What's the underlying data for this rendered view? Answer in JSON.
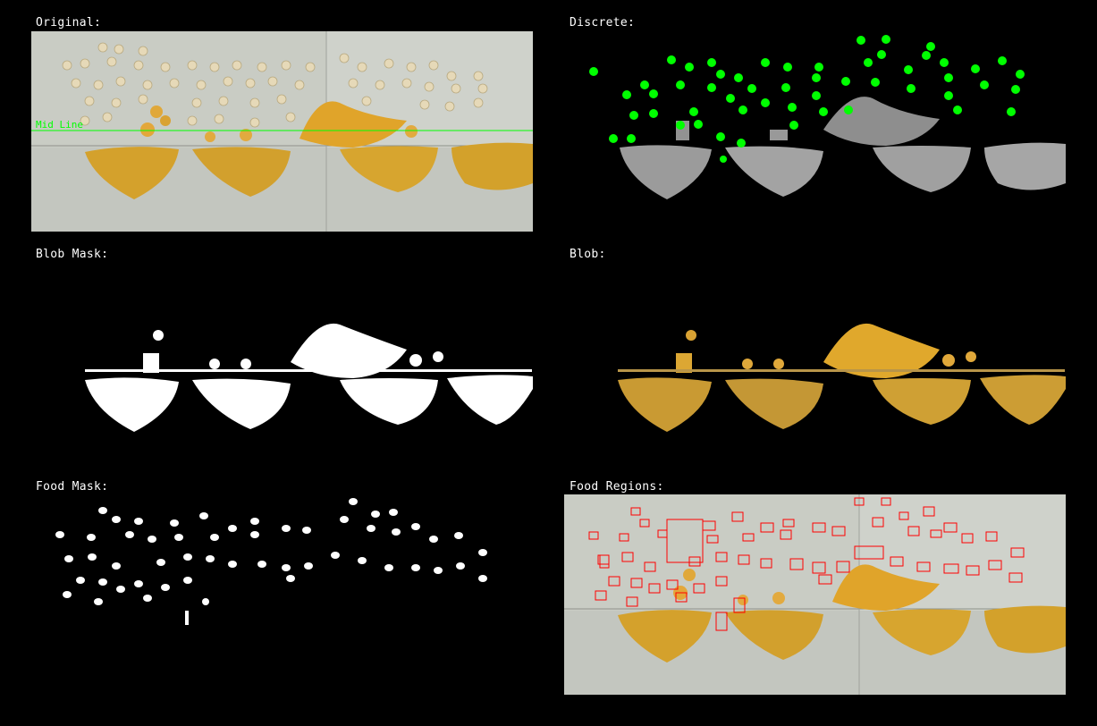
{
  "panels": {
    "original": {
      "label": "Original:",
      "mid_line_label": "Mid Line"
    },
    "discrete": {
      "label": "Discrete:"
    },
    "blob_mask": {
      "label": "Blob Mask:"
    },
    "blob": {
      "label": "Blob:"
    },
    "food_mask": {
      "label": "Food Mask:"
    },
    "food_regions": {
      "label": "Food Regions:"
    }
  },
  "colors": {
    "background": "#000000",
    "label_text": "#ffffff",
    "mid_line": "#00ff00",
    "food_marker": "#00ff00",
    "region_box": "#ff0000",
    "slime_mold": "#d9a42a",
    "agar_plate": "#c9ccc6",
    "food_oat": "#e8dcbf",
    "discrete_gray": "#9a9a9a"
  },
  "icons": {
    "original": "photo-image",
    "discrete": "segmentation-image",
    "blob_mask": "binary-mask-image",
    "blob": "masked-photo-image",
    "food_mask": "binary-mask-image",
    "food_regions": "annotated-photo-image"
  }
}
